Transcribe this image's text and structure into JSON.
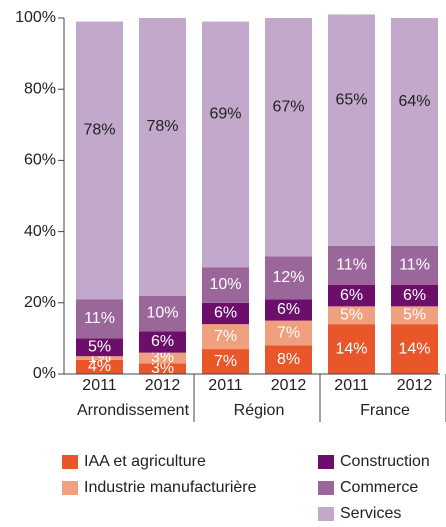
{
  "chart_data": {
    "type": "stacked_bar",
    "categories": [
      "2011",
      "2012",
      "2011",
      "2012",
      "2011",
      "2012"
    ],
    "groups": [
      "Arrondissement",
      "Région",
      "France"
    ],
    "series": [
      {
        "name": "IAA et agriculture",
        "color": "#e8562a",
        "values": [
          4,
          3,
          7,
          8,
          14,
          14
        ],
        "value_labels": [
          "4%",
          "3%",
          "7%",
          "8%",
          "14%",
          "14%"
        ]
      },
      {
        "name": "Industrie manufacturière",
        "color": "#f0a07e",
        "values": [
          1,
          3,
          7,
          7,
          5,
          5
        ],
        "value_labels": [
          "1%",
          "3%",
          "7%",
          "7%",
          "5%",
          "5%"
        ]
      },
      {
        "name": "Construction",
        "color": "#6b0f6b",
        "values": [
          5,
          6,
          6,
          6,
          6,
          6
        ],
        "value_labels": [
          "5%",
          "6%",
          "6%",
          "6%",
          "6%",
          "6%"
        ]
      },
      {
        "name": "Commerce",
        "color": "#9b679b",
        "values": [
          11,
          10,
          10,
          12,
          11,
          11
        ],
        "value_labels": [
          "11%",
          "10%",
          "10%",
          "12%",
          "11%",
          "11%"
        ]
      },
      {
        "name": "Services",
        "color": "#c2a8ca",
        "values": [
          78,
          78,
          69,
          67,
          65,
          64
        ],
        "value_labels": [
          "78%",
          "78%",
          "69%",
          "67%",
          "65%",
          "64%"
        ]
      }
    ],
    "ylim": [
      0,
      100
    ],
    "yticks": [
      {
        "value": 0,
        "label": "0%"
      },
      {
        "value": 20,
        "label": "20%"
      },
      {
        "value": 40,
        "label": "40%"
      },
      {
        "value": 60,
        "label": "60%"
      },
      {
        "value": 80,
        "label": "80%"
      },
      {
        "value": 100,
        "label": "100%"
      }
    ]
  }
}
